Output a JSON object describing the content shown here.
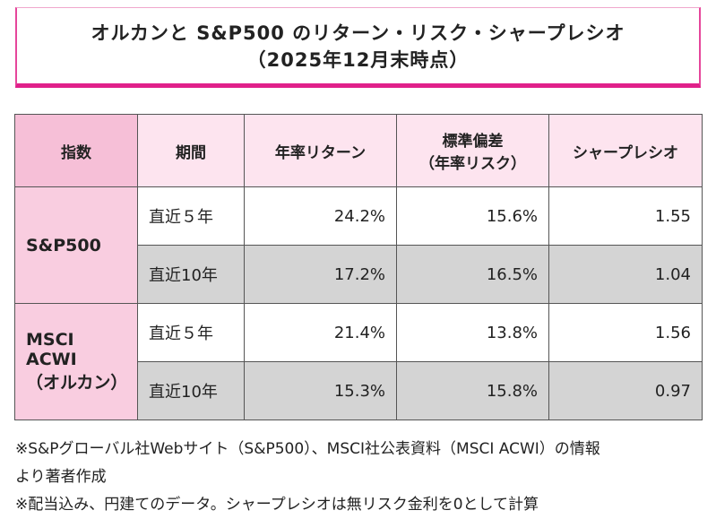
{
  "title": {
    "lines": [
      "オルカンと S&P500 のリターン・リスク・シャープレシオ",
      "（2025年12月末時点）"
    ]
  },
  "table": {
    "header": [
      [
        "指数"
      ],
      [
        "期間"
      ],
      [
        "年率リターン"
      ],
      [
        "標準偏差",
        "（年率リスク）"
      ],
      [
        "シャープレシオ"
      ]
    ],
    "groups": [
      {
        "index": [
          "S&P500"
        ],
        "rows": [
          [
            "直近５年",
            "24.2%",
            "15.6%",
            "1.55"
          ],
          [
            "直近10年",
            "17.2%",
            "16.5%",
            "1.04"
          ]
        ]
      },
      {
        "index": [
          "MSCI ACWI",
          "（オルカン）"
        ],
        "rows": [
          [
            "直近５年",
            "21.4%",
            "13.8%",
            "1.56"
          ],
          [
            "直近10年",
            "15.3%",
            "15.8%",
            "0.97"
          ]
        ]
      }
    ]
  },
  "notes": [
    [
      "※S&Pグローバル社Webサイト（S&P500）、MSCI社公表資料（MSCI ACWI）の情報",
      "より著者作成"
    ],
    [
      "※配当込み、円建てのデータ。シャープレシオは無リスク金利を0として計算"
    ]
  ]
}
